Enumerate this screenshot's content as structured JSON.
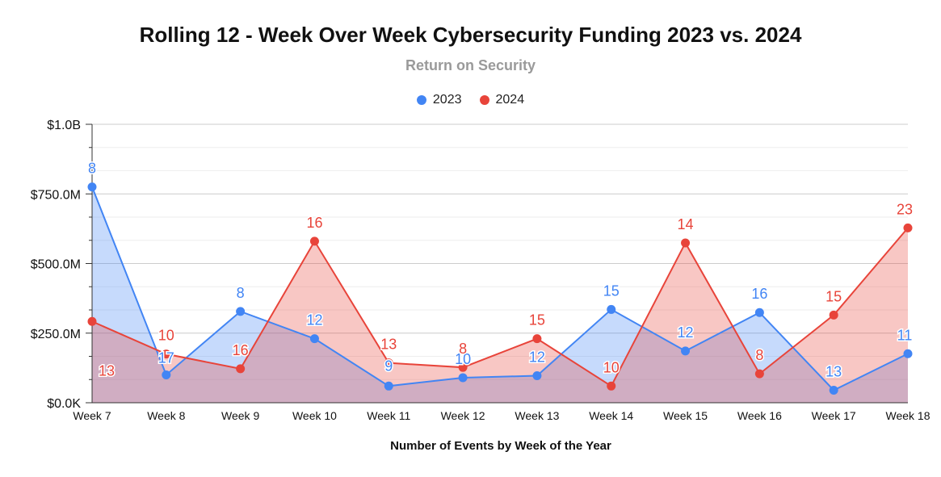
{
  "chart_data": {
    "type": "area",
    "title": "Rolling 12 - Week Over Week Cybersecurity Funding 2023 vs. 2024",
    "subtitle": "Return on Security",
    "xlabel": "Number of Events by Week of the Year",
    "ylabel": "",
    "ylim": [
      0,
      1000
    ],
    "yticks": [
      0,
      250,
      500,
      750,
      1000
    ],
    "ytick_labels": [
      "$0.0K",
      "$250.0M",
      "$500.0M",
      "$750.0M",
      "$1.0B"
    ],
    "grid": true,
    "legend_position": "top-center",
    "categories": [
      "Week 7",
      "Week 8",
      "Week 9",
      "Week 10",
      "Week 11",
      "Week 12",
      "Week 13",
      "Week 14",
      "Week 15",
      "Week 16",
      "Week 17",
      "Week 18"
    ],
    "series": [
      {
        "name": "2023",
        "color": "#4285f4",
        "fill": "#c6d9f7",
        "values": [
          775,
          100,
          328,
          230,
          60,
          90,
          97,
          335,
          186,
          324,
          45,
          176
        ],
        "labels": [
          "8",
          "17",
          "8",
          "12",
          "9",
          "10",
          "12",
          "15",
          "12",
          "16",
          "13",
          "11"
        ]
      },
      {
        "name": "2024",
        "color": "#e8443a",
        "fill": "#f6c5c2",
        "values": [
          292,
          175,
          122,
          580,
          143,
          127,
          230,
          60,
          574,
          104,
          315,
          628
        ],
        "labels": [
          "13",
          "10",
          "16",
          "16",
          "13",
          "8",
          "15",
          "10",
          "14",
          "8",
          "15",
          "23"
        ]
      }
    ]
  }
}
